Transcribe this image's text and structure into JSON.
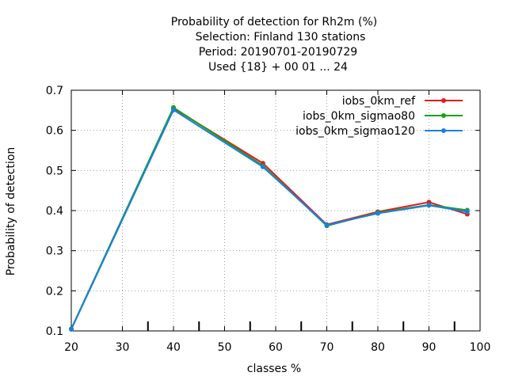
{
  "chart_data": {
    "type": "line",
    "title_lines": [
      "Probability of detection  for Rh2m (%)",
      "Selection: Finland    130 stations",
      "Period: 20190701-20190729",
      "Used {18} + 00 01 ... 24"
    ],
    "xlabel": "classes %",
    "ylabel": "Probability of detection",
    "xlim": [
      20,
      100
    ],
    "ylim": [
      0.1,
      0.7
    ],
    "xticks": [
      20,
      30,
      40,
      50,
      60,
      70,
      80,
      90,
      100
    ],
    "yticks": [
      0.1,
      0.2,
      0.3,
      0.4,
      0.5,
      0.6,
      0.7
    ],
    "xtick_labels": [
      "20",
      "30",
      "40",
      "50",
      "60",
      "70",
      "80",
      "90",
      "100"
    ],
    "ytick_labels": [
      "0.1",
      "0.2",
      "0.3",
      "0.4",
      "0.5",
      "0.6",
      "0.7"
    ],
    "grid": true,
    "legend_position": "top-right",
    "x": [
      20,
      40,
      57.5,
      70,
      80,
      90,
      97.5
    ],
    "series": [
      {
        "name": "iobs_0km_ref",
        "color": "#e41a1c",
        "values": [
          0.105,
          0.655,
          0.518,
          0.365,
          0.397,
          0.421,
          0.391
        ]
      },
      {
        "name": "iobs_0km_sigmao80",
        "color": "#1aa01a",
        "values": [
          0.105,
          0.657,
          0.512,
          0.362,
          0.395,
          0.414,
          0.401
        ]
      },
      {
        "name": "iobs_0km_sigmao120",
        "color": "#1a7fe4",
        "values": [
          0.104,
          0.651,
          0.509,
          0.364,
          0.393,
          0.413,
          0.397
        ]
      }
    ]
  }
}
